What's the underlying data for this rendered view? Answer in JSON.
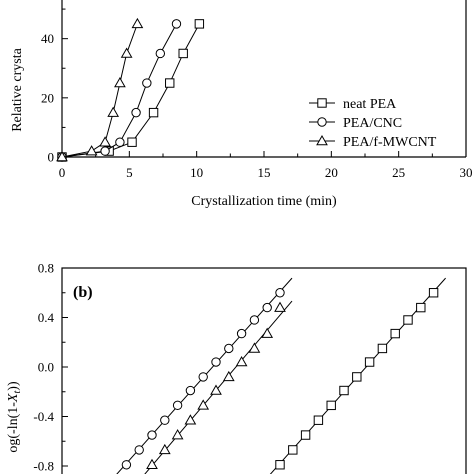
{
  "chart_data": [
    {
      "type": "line",
      "panel": "a",
      "ylabel": "Relative crysta",
      "xlabel": "Crystallization time (min)",
      "xlim": [
        0,
        30
      ],
      "ylim": [
        0,
        60
      ],
      "xticks": [
        "0",
        "5",
        "10",
        "15",
        "20",
        "25",
        "30"
      ],
      "yticks": [
        "0",
        "20",
        "40"
      ],
      "legend_position": "bottom-right",
      "series": [
        {
          "name": "neat PEA",
          "marker": "square",
          "x": [
            0,
            3.5,
            5.2,
            6.8,
            8.0,
            9.0,
            10.2
          ],
          "y": [
            0,
            2,
            5,
            15,
            25,
            35,
            45
          ]
        },
        {
          "name": "PEA/CNC",
          "marker": "circle",
          "x": [
            0,
            3.2,
            4.3,
            5.5,
            6.3,
            7.3,
            8.5
          ],
          "y": [
            0,
            2,
            5,
            15,
            25,
            35,
            45
          ]
        },
        {
          "name": "PEA/f-MWCNT",
          "marker": "triangle",
          "x": [
            0,
            2.2,
            3.2,
            3.8,
            4.3,
            4.8,
            5.6
          ],
          "y": [
            0,
            2,
            5,
            15,
            25,
            35,
            45
          ]
        }
      ]
    },
    {
      "type": "scatter",
      "panel": "b",
      "panel_label": "(b)",
      "ylabel": "log(-ln(1-X_t))",
      "ylabel_parts": {
        "pre": "og(-ln(1-",
        "var": "X",
        "sub": "t",
        "post": "))"
      },
      "ylim": [
        -0.85,
        0.8
      ],
      "yticks": [
        "0.8",
        "0.4",
        "0.0",
        "-0.4",
        "-0.8"
      ],
      "ytick_values": [
        0.8,
        0.4,
        0.0,
        -0.4,
        -0.8
      ],
      "series": [
        {
          "name": "PEA/CNC",
          "marker": "circle",
          "x": [
            0.8,
            0.9,
            1.0,
            1.1,
            1.2,
            1.3,
            1.4,
            1.5,
            1.6,
            1.7,
            1.8,
            1.9,
            2.0
          ],
          "y": [
            -0.79,
            -0.67,
            -0.55,
            -0.43,
            -0.31,
            -0.19,
            -0.08,
            0.04,
            0.15,
            0.27,
            0.38,
            0.48,
            0.6
          ]
        },
        {
          "name": "PEA/f-MWCNT",
          "marker": "triangle",
          "x": [
            1.0,
            1.1,
            1.2,
            1.3,
            1.4,
            1.5,
            1.6,
            1.7,
            1.8,
            1.9,
            2.0
          ],
          "y": [
            -0.79,
            -0.67,
            -0.55,
            -0.43,
            -0.31,
            -0.19,
            -0.08,
            0.04,
            0.15,
            0.27,
            0.48
          ]
        },
        {
          "name": "neat PEA",
          "marker": "square",
          "x": [
            2.0,
            2.1,
            2.2,
            2.3,
            2.4,
            2.5,
            2.6,
            2.7,
            2.8,
            2.9,
            3.0,
            3.1,
            3.2
          ],
          "y": [
            -0.79,
            -0.67,
            -0.55,
            -0.43,
            -0.31,
            -0.19,
            -0.08,
            0.04,
            0.15,
            0.27,
            0.38,
            0.48,
            0.6
          ]
        }
      ]
    }
  ]
}
